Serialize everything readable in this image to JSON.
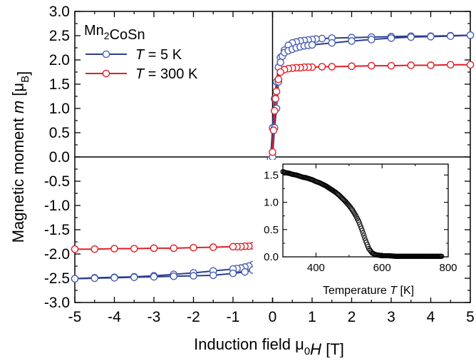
{
  "chart_data": {
    "type": "line",
    "title": "",
    "xlabel": "Induction field  μ0H [T]",
    "ylabel": "Magnetic moment  m [μB]",
    "xlim": [
      -5,
      5
    ],
    "ylim": [
      -3.0,
      3.0
    ],
    "x_ticks": [
      -5,
      -4,
      -3,
      -2,
      -1,
      0,
      1,
      2,
      3,
      4,
      5
    ],
    "x_tick_labels": [
      "-5",
      "-4",
      "-3",
      "-2",
      "-1",
      "0",
      "1",
      "2",
      "3",
      "4",
      "5"
    ],
    "y_ticks": [
      3.0,
      2.5,
      2.0,
      1.5,
      1.0,
      0.5,
      0.0,
      -0.5,
      -1.0,
      -1.5,
      -2.0,
      -2.5,
      -3.0
    ],
    "y_tick_labels": [
      "3.0",
      "2.5",
      "2.0",
      "1.5",
      "1.0",
      "0.5",
      "0.0",
      "-0.5",
      "-1.0",
      "-1.5",
      "-2.0",
      "-2.5",
      "-3.0"
    ],
    "zero_lines": true,
    "sample_label": "Mn2CoSn",
    "legend_position": "top-left",
    "series": [
      {
        "name": "T = 5 K",
        "color": "#2b3f8f",
        "marker": "open-circle",
        "marker_color": "#4a5fb5",
        "branches": [
          [
            [
              5.0,
              2.51
            ],
            [
              4.5,
              2.5
            ],
            [
              4.0,
              2.49
            ],
            [
              3.5,
              2.49
            ],
            [
              3.0,
              2.48
            ],
            [
              2.5,
              2.47
            ],
            [
              2.0,
              2.46
            ],
            [
              1.5,
              2.45
            ],
            [
              1.25,
              2.44
            ],
            [
              1.1,
              2.43
            ],
            [
              1.0,
              2.42
            ],
            [
              0.9,
              2.41
            ],
            [
              0.8,
              2.4
            ],
            [
              0.7,
              2.39
            ],
            [
              0.6,
              2.37
            ],
            [
              0.5,
              2.35
            ],
            [
              0.4,
              2.3
            ],
            [
              0.3,
              2.2
            ],
            [
              0.2,
              2.05
            ],
            [
              0.15,
              1.85
            ],
            [
              0.1,
              1.55
            ],
            [
              0.05,
              1.2
            ],
            [
              0.0,
              0.6
            ],
            [
              -0.05,
              -0.05
            ],
            [
              -0.1,
              -0.5
            ],
            [
              -0.15,
              -1.0
            ],
            [
              -0.2,
              -1.5
            ],
            [
              -0.25,
              -1.9
            ],
            [
              -0.3,
              -2.05
            ],
            [
              -0.4,
              -2.17
            ],
            [
              -0.5,
              -2.22
            ],
            [
              -0.6,
              -2.25
            ],
            [
              -0.7,
              -2.27
            ],
            [
              -0.8,
              -2.29
            ],
            [
              -0.9,
              -2.3
            ],
            [
              -1.0,
              -2.31
            ],
            [
              -1.5,
              -2.35
            ],
            [
              -2.0,
              -2.39
            ],
            [
              -2.5,
              -2.42
            ],
            [
              -3.0,
              -2.45
            ],
            [
              -3.5,
              -2.47
            ],
            [
              -4.0,
              -2.48
            ],
            [
              -4.5,
              -2.49
            ],
            [
              -5.0,
              -2.51
            ]
          ],
          [
            [
              -5.0,
              -2.51
            ],
            [
              -4.5,
              -2.5
            ],
            [
              -4.0,
              -2.49
            ],
            [
              -3.5,
              -2.48
            ],
            [
              -3.0,
              -2.47
            ],
            [
              -2.5,
              -2.46
            ],
            [
              -2.0,
              -2.45
            ],
            [
              -1.5,
              -2.44
            ],
            [
              -1.0,
              -2.4
            ],
            [
              -0.7,
              -2.37
            ],
            [
              -0.5,
              -2.33
            ],
            [
              -0.3,
              -2.2
            ],
            [
              -0.2,
              -1.95
            ],
            [
              -0.1,
              -1.3
            ],
            [
              -0.05,
              -0.6
            ],
            [
              0.0,
              0.0
            ],
            [
              0.05,
              0.6
            ],
            [
              0.1,
              1.0
            ],
            [
              0.15,
              1.55
            ],
            [
              0.2,
              1.95
            ],
            [
              0.25,
              2.08
            ],
            [
              0.3,
              2.15
            ],
            [
              0.4,
              2.19
            ],
            [
              0.5,
              2.22
            ],
            [
              0.6,
              2.25
            ],
            [
              0.7,
              2.27
            ],
            [
              0.8,
              2.29
            ],
            [
              0.9,
              2.3
            ],
            [
              1.0,
              2.31
            ],
            [
              1.5,
              2.35
            ],
            [
              2.0,
              2.39
            ],
            [
              2.5,
              2.42
            ],
            [
              3.0,
              2.45
            ],
            [
              3.5,
              2.47
            ],
            [
              4.0,
              2.48
            ],
            [
              4.5,
              2.49
            ],
            [
              5.0,
              2.51
            ]
          ]
        ]
      },
      {
        "name": "T = 300 K",
        "color": "#e01f26",
        "marker": "open-circle",
        "marker_color": "#e01f26",
        "branches": [
          [
            [
              5.0,
              1.9
            ],
            [
              4.5,
              1.9
            ],
            [
              4.0,
              1.89
            ],
            [
              3.5,
              1.89
            ],
            [
              3.0,
              1.88
            ],
            [
              2.5,
              1.88
            ],
            [
              2.0,
              1.87
            ],
            [
              1.5,
              1.86
            ],
            [
              1.25,
              1.86
            ],
            [
              1.0,
              1.85
            ],
            [
              0.9,
              1.85
            ],
            [
              0.8,
              1.85
            ],
            [
              0.7,
              1.84
            ],
            [
              0.6,
              1.84
            ],
            [
              0.5,
              1.83
            ],
            [
              0.4,
              1.82
            ],
            [
              0.3,
              1.8
            ],
            [
              0.2,
              1.75
            ],
            [
              0.15,
              1.6
            ],
            [
              0.1,
              1.35
            ],
            [
              0.075,
              1.2
            ],
            [
              0.05,
              0.95
            ],
            [
              0.025,
              0.55
            ],
            [
              0.0,
              0.1
            ],
            [
              -0.025,
              -0.3
            ],
            [
              -0.05,
              -0.75
            ],
            [
              -0.075,
              -1.1
            ],
            [
              -0.1,
              -1.35
            ],
            [
              -0.15,
              -1.6
            ],
            [
              -0.2,
              -1.75
            ],
            [
              -0.3,
              -1.8
            ],
            [
              -0.4,
              -1.82
            ],
            [
              -0.5,
              -1.83
            ],
            [
              -0.6,
              -1.84
            ],
            [
              -0.7,
              -1.84
            ],
            [
              -0.8,
              -1.85
            ],
            [
              -0.9,
              -1.85
            ],
            [
              -1.0,
              -1.85
            ],
            [
              -1.5,
              -1.86
            ],
            [
              -2.0,
              -1.87
            ],
            [
              -2.5,
              -1.88
            ],
            [
              -3.0,
              -1.88
            ],
            [
              -3.5,
              -1.89
            ],
            [
              -4.0,
              -1.89
            ],
            [
              -4.5,
              -1.9
            ],
            [
              -5.0,
              -1.9
            ]
          ]
        ]
      }
    ],
    "inset": {
      "type": "scatter",
      "xlabel": "Temperature  T [K]",
      "ylabel": "",
      "xlim": [
        300,
        800
      ],
      "ylim": [
        0.0,
        1.7
      ],
      "x_ticks": [
        400,
        600,
        800
      ],
      "x_tick_labels": [
        "400",
        "600",
        "800"
      ],
      "y_ticks": [
        0.0,
        0.5,
        1.0,
        1.5
      ],
      "y_tick_labels": [
        "0.0",
        "0.5",
        "1.0",
        "1.5"
      ],
      "marker": "open-circle",
      "color": "#000000",
      "x": [
        300,
        310,
        320,
        330,
        340,
        350,
        360,
        370,
        380,
        390,
        400,
        410,
        420,
        430,
        440,
        450,
        460,
        470,
        480,
        490,
        500,
        510,
        520,
        530,
        540,
        550,
        560,
        570,
        580,
        590,
        600,
        610,
        620,
        640,
        660,
        680,
        700,
        720,
        740,
        760,
        780
      ],
      "y": [
        1.56,
        1.54,
        1.53,
        1.51,
        1.5,
        1.48,
        1.46,
        1.45,
        1.43,
        1.41,
        1.38,
        1.36,
        1.33,
        1.3,
        1.26,
        1.22,
        1.18,
        1.13,
        1.07,
        1.01,
        0.94,
        0.86,
        0.76,
        0.64,
        0.48,
        0.3,
        0.15,
        0.07,
        0.04,
        0.03,
        0.02,
        0.02,
        0.02,
        0.01,
        0.01,
        0.01,
        0.01,
        0.01,
        0.01,
        0.01,
        0.01
      ]
    }
  }
}
